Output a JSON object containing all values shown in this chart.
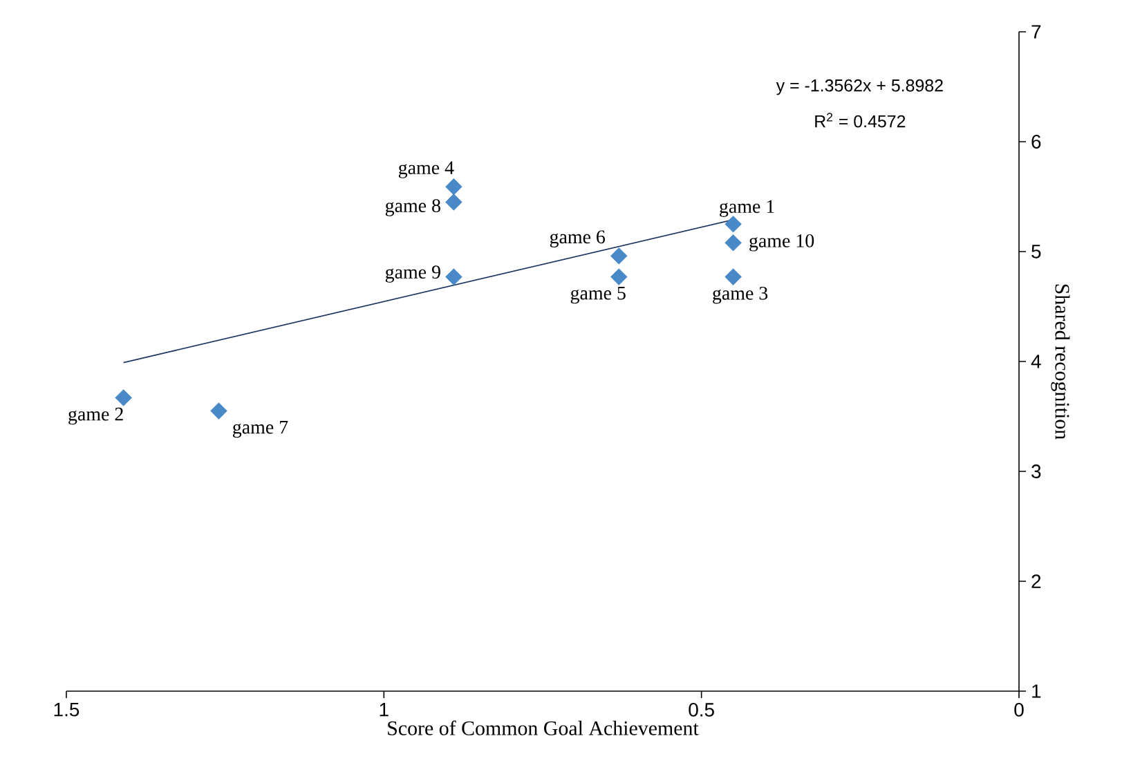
{
  "chart_data": {
    "type": "scatter",
    "xlabel": "Score of Common Goal Achievement",
    "ylabel": "Shared recognition",
    "xlim": [
      1.5,
      0
    ],
    "ylim": [
      1,
      7
    ],
    "xticks": [
      1.5,
      1,
      0.5,
      0
    ],
    "yticks": [
      1,
      2,
      3,
      4,
      5,
      6,
      7
    ],
    "series": [
      {
        "marker": "diamond",
        "color": "#4a89c8",
        "x": [
          0.45,
          1.41,
          0.45,
          0.89,
          0.63,
          0.63,
          1.26,
          0.89,
          0.89,
          0.45
        ],
        "values": [
          5.25,
          3.67,
          4.77,
          5.59,
          4.77,
          4.96,
          3.55,
          5.45,
          4.77,
          5.08
        ]
      },
      {
        "type": "line",
        "marker": "none",
        "color": "#1f3864",
        "x": [
          1.41,
          0.45
        ],
        "values": [
          3.99,
          5.29
        ]
      }
    ],
    "annotations": [
      {
        "text": "game 1",
        "x": 0.45,
        "y": 5.25
      },
      {
        "text": "game 2",
        "x": 1.41,
        "y": 3.67
      },
      {
        "text": "game 3",
        "x": 0.45,
        "y": 4.77
      },
      {
        "text": "game 4",
        "x": 0.89,
        "y": 5.59
      },
      {
        "text": "game 5",
        "x": 0.63,
        "y": 4.77
      },
      {
        "text": "game 6",
        "x": 0.63,
        "y": 4.96
      },
      {
        "text": "game 7",
        "x": 1.26,
        "y": 3.55
      },
      {
        "text": "game 8",
        "x": 0.89,
        "y": 5.45
      },
      {
        "text": "game 9",
        "x": 0.89,
        "y": 4.77
      },
      {
        "text": "game 10",
        "x": 0.45,
        "y": 5.08
      },
      "y = -1.3562x + 5.8982",
      "R$^{2}$ = 0.4572"
    ]
  }
}
